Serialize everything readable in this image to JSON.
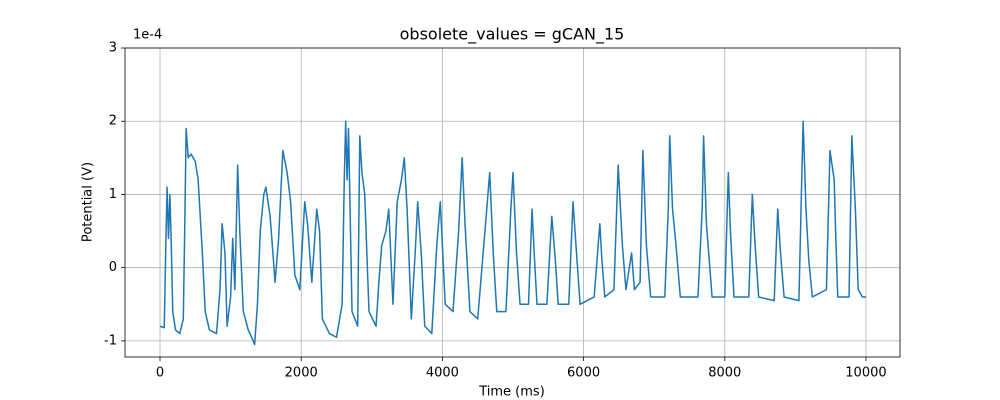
{
  "chart_data": {
    "type": "line",
    "title": "obsolete_values = gCAN_15",
    "xlabel": "Time (ms)",
    "ylabel": "Potential (V)",
    "y_offset_label": "1e-4",
    "color": "#1f77b4",
    "grid": true,
    "xlim": [
      -496,
      10482
    ],
    "xticks": [
      0,
      2000,
      4000,
      6000,
      8000,
      10000
    ],
    "ylim": [
      -1.22,
      3
    ],
    "yticks": [
      -1,
      0,
      1,
      2,
      3
    ],
    "x": [
      0,
      60,
      80,
      100,
      120,
      140,
      160,
      180,
      220,
      280,
      330,
      354,
      370,
      400,
      440,
      500,
      540,
      600,
      640,
      700,
      800,
      850,
      880,
      920,
      950,
      1000,
      1030,
      1060,
      1100,
      1130,
      1180,
      1250,
      1320,
      1340,
      1380,
      1420,
      1470,
      1500,
      1560,
      1630,
      1680,
      1740,
      1800,
      1850,
      1910,
      1980,
      2050,
      2090,
      2150,
      2220,
      2260,
      2300,
      2400,
      2500,
      2580,
      2610,
      2630,
      2650,
      2670,
      2690,
      2720,
      2800,
      2830,
      2860,
      2900,
      2960,
      3060,
      3100,
      3140,
      3200,
      3240,
      3300,
      3360,
      3420,
      3460,
      3500,
      3560,
      3620,
      3650,
      3700,
      3750,
      3850,
      3920,
      3970,
      4040,
      4150,
      4230,
      4280,
      4320,
      4390,
      4500,
      4620,
      4670,
      4720,
      4770,
      4900,
      4970,
      5000,
      5050,
      5100,
      5220,
      5270,
      5300,
      5340,
      5480,
      5550,
      5600,
      5640,
      5790,
      5850,
      5900,
      5950,
      6150,
      6230,
      6260,
      6300,
      6430,
      6490,
      6550,
      6600,
      6680,
      6720,
      6800,
      6840,
      6890,
      6950,
      7150,
      7200,
      7220,
      7260,
      7310,
      7370,
      7620,
      7680,
      7700,
      7740,
      7820,
      8000,
      8050,
      8080,
      8130,
      8340,
      8390,
      8430,
      8480,
      8700,
      8750,
      8790,
      8840,
      9050,
      9090,
      9110,
      9150,
      9190,
      9240,
      9440,
      9490,
      9550,
      9570,
      9600,
      9760,
      9800,
      9850,
      9890,
      9950,
      10000
    ],
    "values": [
      -0.8,
      -0.82,
      0.2,
      1.1,
      0.4,
      1.0,
      0.3,
      -0.6,
      -0.85,
      -0.9,
      -0.7,
      0.8,
      1.9,
      1.5,
      1.55,
      1.45,
      1.2,
      0.2,
      -0.6,
      -0.85,
      -0.9,
      -0.3,
      0.6,
      0.2,
      -0.8,
      -0.4,
      0.4,
      -0.3,
      1.4,
      0.5,
      -0.6,
      -0.85,
      -1.0,
      -1.05,
      -0.5,
      0.5,
      1.0,
      1.1,
      0.7,
      -0.2,
      0.4,
      1.6,
      1.3,
      0.9,
      -0.1,
      -0.3,
      0.9,
      0.6,
      -0.2,
      0.8,
      0.5,
      -0.7,
      -0.9,
      -0.95,
      -0.5,
      1.2,
      2.0,
      1.2,
      1.9,
      0.9,
      -0.6,
      -0.8,
      1.8,
      1.3,
      1.0,
      -0.6,
      -0.8,
      -0.2,
      0.3,
      0.5,
      0.8,
      -0.5,
      0.9,
      1.2,
      1.5,
      0.8,
      -0.7,
      0.3,
      0.9,
      0.2,
      -0.8,
      -0.9,
      0.3,
      0.9,
      -0.5,
      -0.6,
      0.5,
      1.5,
      0.6,
      -0.6,
      -0.7,
      0.7,
      1.3,
      0.2,
      -0.6,
      -0.6,
      0.8,
      1.3,
      0.2,
      -0.5,
      -0.5,
      0.8,
      0.2,
      -0.5,
      -0.5,
      0.7,
      0.1,
      -0.5,
      -0.5,
      0.9,
      0.2,
      -0.5,
      -0.4,
      0.6,
      0.1,
      -0.4,
      -0.3,
      1.4,
      0.3,
      -0.3,
      0.2,
      -0.3,
      -0.2,
      1.6,
      0.3,
      -0.4,
      -0.4,
      0.8,
      1.8,
      0.8,
      0.3,
      -0.4,
      -0.4,
      0.8,
      1.8,
      0.6,
      -0.4,
      -0.4,
      1.3,
      0.5,
      -0.4,
      -0.4,
      1.0,
      0.3,
      -0.4,
      -0.45,
      0.8,
      0.2,
      -0.4,
      -0.45,
      1.2,
      2.0,
      0.8,
      0.1,
      -0.4,
      -0.3,
      1.6,
      1.2,
      0.5,
      -0.4,
      -0.4,
      1.8,
      0.8,
      -0.3,
      -0.4,
      -0.4
    ]
  }
}
